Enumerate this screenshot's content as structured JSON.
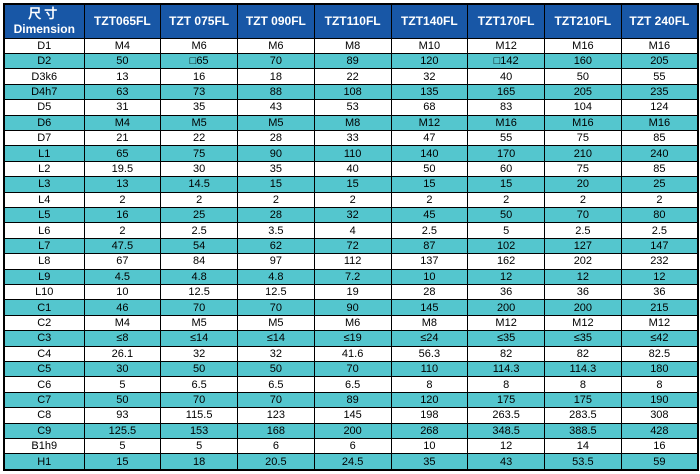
{
  "table": {
    "header": {
      "dimension_label_cn": "尺寸",
      "dimension_label_en": "Dimension",
      "columns": [
        "TZT065FL",
        "TZT 075FL",
        "TZT 090FL",
        "TZT110FL",
        "TZT140FL",
        "TZT170FL",
        "TZT210FL",
        "TZT 240FL"
      ]
    },
    "rows": [
      {
        "label": "D1",
        "values": [
          "M4",
          "M6",
          "M6",
          "M8",
          "M10",
          "M12",
          "M16",
          "M16"
        ]
      },
      {
        "label": "D2",
        "values": [
          "50",
          "□65",
          "70",
          "89",
          "120",
          "□142",
          "160",
          "205"
        ]
      },
      {
        "label": "D3k6",
        "values": [
          "13",
          "16",
          "18",
          "22",
          "32",
          "40",
          "50",
          "55"
        ]
      },
      {
        "label": "D4h7",
        "values": [
          "63",
          "73",
          "88",
          "108",
          "135",
          "165",
          "205",
          "235"
        ]
      },
      {
        "label": "D5",
        "values": [
          "31",
          "35",
          "43",
          "53",
          "68",
          "83",
          "104",
          "124"
        ]
      },
      {
        "label": "D6",
        "values": [
          "M4",
          "M5",
          "M5",
          "M8",
          "M12",
          "M16",
          "M16",
          "M16"
        ]
      },
      {
        "label": "D7",
        "values": [
          "21",
          "22",
          "28",
          "33",
          "47",
          "55",
          "75",
          "85"
        ]
      },
      {
        "label": "L1",
        "values": [
          "65",
          "75",
          "90",
          "110",
          "140",
          "170",
          "210",
          "240"
        ]
      },
      {
        "label": "L2",
        "values": [
          "19.5",
          "30",
          "35",
          "40",
          "50",
          "60",
          "75",
          "85"
        ]
      },
      {
        "label": "L3",
        "values": [
          "13",
          "14.5",
          "15",
          "15",
          "15",
          "15",
          "20",
          "25"
        ]
      },
      {
        "label": "L4",
        "values": [
          "2",
          "2",
          "2",
          "2",
          "2",
          "2",
          "2",
          "2"
        ]
      },
      {
        "label": "L5",
        "values": [
          "16",
          "25",
          "28",
          "32",
          "45",
          "50",
          "70",
          "80"
        ]
      },
      {
        "label": "L6",
        "values": [
          "2",
          "2.5",
          "3.5",
          "4",
          "2.5",
          "5",
          "2.5",
          "2.5"
        ]
      },
      {
        "label": "L7",
        "values": [
          "47.5",
          "54",
          "62",
          "72",
          "87",
          "102",
          "127",
          "147"
        ]
      },
      {
        "label": "L8",
        "values": [
          "67",
          "84",
          "97",
          "112",
          "137",
          "162",
          "202",
          "232"
        ]
      },
      {
        "label": "L9",
        "values": [
          "4.5",
          "4.8",
          "4.8",
          "7.2",
          "10",
          "12",
          "12",
          "12"
        ]
      },
      {
        "label": "L10",
        "values": [
          "10",
          "12.5",
          "12.5",
          "19",
          "28",
          "36",
          "36",
          "36"
        ]
      },
      {
        "label": "C1",
        "values": [
          "46",
          "70",
          "70",
          "90",
          "145",
          "200",
          "200",
          "215"
        ]
      },
      {
        "label": "C2",
        "values": [
          "M4",
          "M5",
          "M5",
          "M6",
          "M8",
          "M12",
          "M12",
          "M12"
        ]
      },
      {
        "label": "C3",
        "values": [
          "≤8",
          "≤14",
          "≤14",
          "≤19",
          "≤24",
          "≤35",
          "≤35",
          "≤42"
        ]
      },
      {
        "label": "C4",
        "values": [
          "26.1",
          "32",
          "32",
          "41.6",
          "56.3",
          "82",
          "82",
          "82.5"
        ]
      },
      {
        "label": "C5",
        "values": [
          "30",
          "50",
          "50",
          "70",
          "110",
          "114.3",
          "114.3",
          "180"
        ]
      },
      {
        "label": "C6",
        "values": [
          "5",
          "6.5",
          "6.5",
          "6.5",
          "8",
          "8",
          "8",
          "8"
        ]
      },
      {
        "label": "C7",
        "values": [
          "50",
          "70",
          "70",
          "89",
          "120",
          "175",
          "175",
          "190"
        ]
      },
      {
        "label": "C8",
        "values": [
          "93",
          "115.5",
          "123",
          "145",
          "198",
          "263.5",
          "283.5",
          "308"
        ]
      },
      {
        "label": "C9",
        "values": [
          "125.5",
          "153",
          "168",
          "200",
          "268",
          "348.5",
          "388.5",
          "428"
        ]
      },
      {
        "label": "B1h9",
        "values": [
          "5",
          "5",
          "6",
          "6",
          "10",
          "12",
          "14",
          "16"
        ]
      },
      {
        "label": "H1",
        "values": [
          "15",
          "18",
          "20.5",
          "24.5",
          "35",
          "43",
          "53.5",
          "59"
        ]
      }
    ],
    "colors": {
      "header_bg": "#1857a6",
      "header_text": "#ffffff",
      "stripe_bg": "#54c6ce",
      "row_bg": "#ffffff",
      "border": "#000000",
      "cell_text": "#000000"
    }
  }
}
